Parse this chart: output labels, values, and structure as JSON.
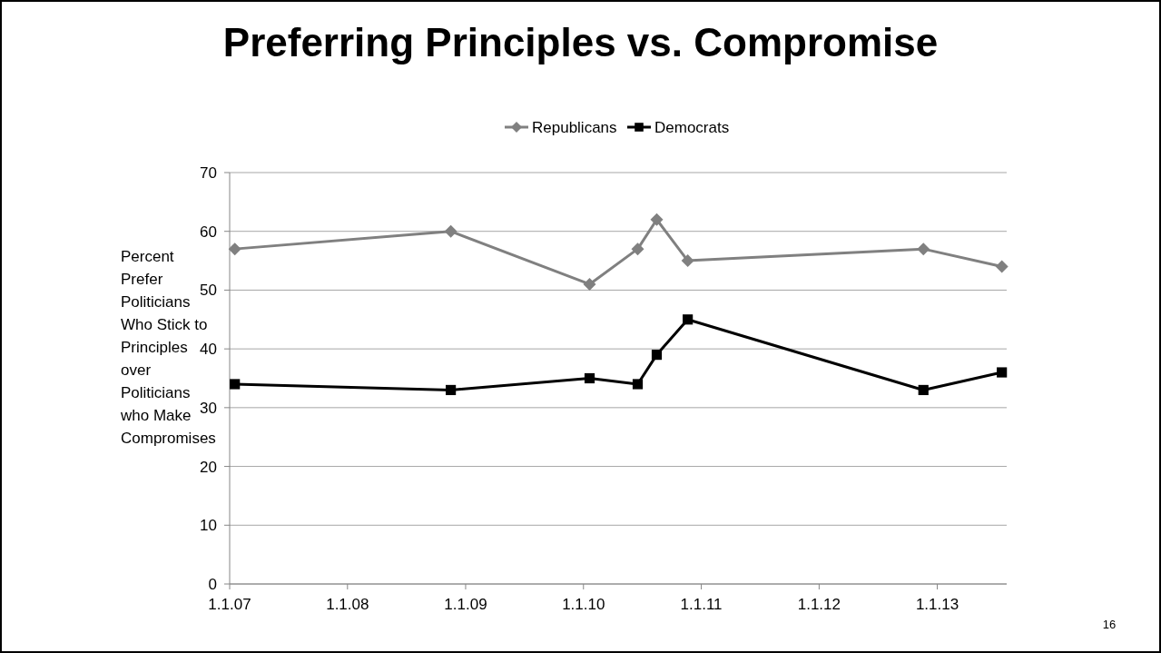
{
  "chart_data": {
    "type": "line",
    "title": "Preferring Principles vs. Compromise",
    "ylabel": "Percent\nPrefer\nPoliticians\nWho Stick to\nPrinciples\nover\nPoliticians\nwho Make\nCompromises",
    "x": [
      "2007-01-17",
      "2008-11-16",
      "2010-01-20",
      "2010-06-18",
      "2010-08-16",
      "2010-11-20",
      "2012-11-19",
      "2013-07-20"
    ],
    "series": [
      {
        "name": "Republicans",
        "color": "#808080",
        "marker": "diamond",
        "values": [
          57,
          60,
          51,
          57,
          62,
          55,
          57,
          54
        ]
      },
      {
        "name": "Democrats",
        "color": "#000000",
        "marker": "square",
        "values": [
          34,
          33,
          35,
          34,
          39,
          45,
          33,
          36
        ]
      }
    ],
    "xlim": [
      "2007-01-01",
      "2013-08-04"
    ],
    "xticks": [
      {
        "value": "2007-01-01",
        "label": "1.1.07"
      },
      {
        "value": "2008-01-01",
        "label": "1.1.08"
      },
      {
        "value": "2009-01-01",
        "label": "1.1.09"
      },
      {
        "value": "2010-01-01",
        "label": "1.1.10"
      },
      {
        "value": "2011-01-01",
        "label": "1.1.11"
      },
      {
        "value": "2012-01-01",
        "label": "1.1.12"
      },
      {
        "value": "2013-01-01",
        "label": "1.1.13"
      }
    ],
    "ylim": [
      0,
      70
    ],
    "yticks": [
      0,
      10,
      20,
      30,
      40,
      50,
      60,
      70
    ],
    "grid": "y",
    "legend": "top",
    "line_style": "solid",
    "annotations": [
      "16"
    ]
  }
}
